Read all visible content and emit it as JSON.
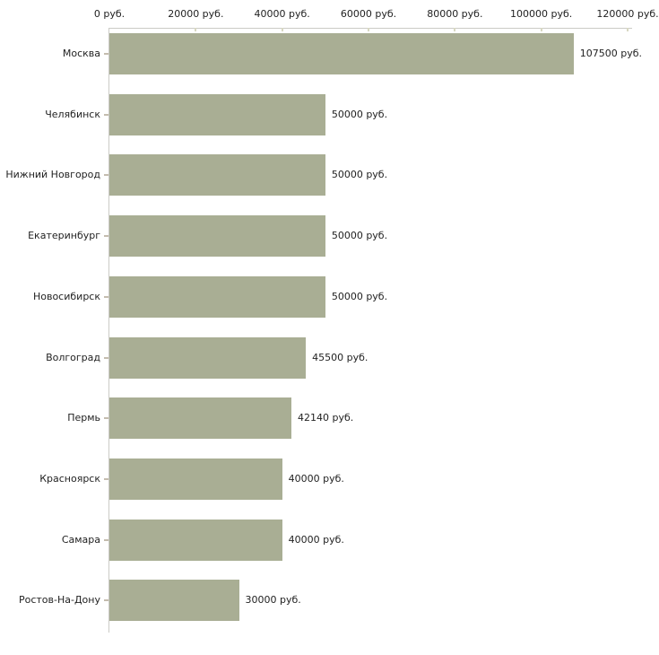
{
  "chart_data": {
    "type": "bar",
    "orientation": "horizontal",
    "title": "",
    "xlabel": "",
    "ylabel": "",
    "unit": "руб.",
    "xlim": [
      0,
      120000
    ],
    "grid": false,
    "legend": null,
    "categories": [
      "Москва",
      "Челябинск",
      "Нижний Новгород",
      "Екатеринбург",
      "Новосибирск",
      "Волгоград",
      "Пермь",
      "Красноярск",
      "Самара",
      "Ростов-На-Дону"
    ],
    "values": [
      107500,
      50000,
      50000,
      50000,
      50000,
      45500,
      42140,
      40000,
      40000,
      30000
    ],
    "value_labels": [
      "107500 руб.",
      "50000 руб.",
      "50000 руб.",
      "50000 руб.",
      "50000 руб.",
      "45500 руб.",
      "42140 руб.",
      "40000 руб.",
      "40000 руб.",
      "30000 руб."
    ],
    "x_ticks": [
      0,
      20000,
      40000,
      60000,
      80000,
      100000,
      120000
    ],
    "x_tick_labels": [
      "0 руб.",
      "20000 руб.",
      "40000 руб.",
      "60000 руб.",
      "80000 руб.",
      "100000 руб.",
      "120000 руб."
    ],
    "colors": {
      "bar": "#a9ae94",
      "axis_line": "#cbcbc6",
      "x_tick_mark": "#d8d8c2",
      "cat_tick_mark": "#c4bcae",
      "text": "#222222",
      "background": "#ffffff"
    }
  }
}
